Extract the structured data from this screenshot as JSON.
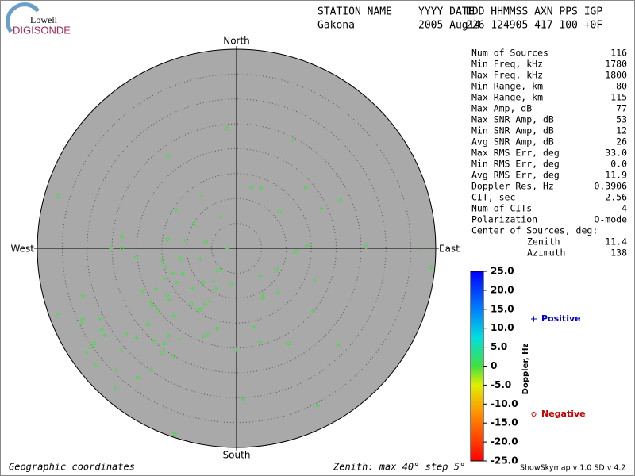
{
  "logo": {
    "line1": "Lowell",
    "line2": "DIGISONDE"
  },
  "header": {
    "labels": [
      "STATION NAME",
      "YYYY DATE",
      "DDD HHMMSS AXN PPS IGP"
    ],
    "values": [
      "Gakona",
      "2005 Aug14",
      "226 124905 417 100 +0F"
    ]
  },
  "stats": [
    [
      "Num of Sources",
      "116"
    ],
    [
      "Min Freq, kHz",
      "1780"
    ],
    [
      "Max Freq, kHz",
      "1800"
    ],
    [
      "Min Range, km",
      "80"
    ],
    [
      "Max Range, km",
      "115"
    ],
    [
      "Max Amp, dB",
      "77"
    ],
    [
      "Max SNR Amp, dB",
      "53"
    ],
    [
      "Min SNR Amp, dB",
      "12"
    ],
    [
      "Avg SNR Amp, dB",
      "26"
    ],
    [
      "Max RMS Err, deg",
      "33.0"
    ],
    [
      "Min RMS Err, deg",
      "0.0"
    ],
    [
      "Avg RMS Err, deg",
      "11.9"
    ],
    [
      "Doppler Res, Hz",
      "0.3906"
    ],
    [
      "CIT, sec",
      "2.56"
    ],
    [
      "Num of CITs",
      "4"
    ],
    [
      "Polarization",
      "O-mode"
    ],
    [
      "Center of Sources, deg:",
      ""
    ]
  ],
  "center": [
    [
      "Zenith",
      "11.4"
    ],
    [
      "Azimuth",
      "138"
    ]
  ],
  "footer": {
    "left": "Geographic coordinates",
    "center": "Zenith: max 40°  step 5°",
    "right": "ShowSkymap v 1.0   SD v 4.2"
  },
  "chart_data": {
    "type": "polar-scatter",
    "directions": {
      "north": "North",
      "south": "South",
      "west": "West",
      "east": "East"
    },
    "zenith_max": 40,
    "zenith_step": 5,
    "background": "#a9a9a9",
    "mark_color": "#40e040",
    "colorbar": {
      "title": "Doppler, Hz",
      "clim": [
        -25,
        25
      ],
      "ticks": [
        {
          "value": 25,
          "label": "25.0"
        },
        {
          "value": 20,
          "label": "20.0"
        },
        {
          "value": 15,
          "label": "15.0"
        },
        {
          "value": 10,
          "label": "10.0"
        },
        {
          "value": 5,
          "label": "5.0"
        },
        {
          "value": 0,
          "label": "0"
        },
        {
          "value": -5,
          "label": "-5.0"
        },
        {
          "value": -10,
          "label": "-10.0"
        },
        {
          "value": -15,
          "label": "-15.0"
        },
        {
          "value": -20,
          "label": "-20.0"
        },
        {
          "value": -25,
          "label": "-25.0"
        }
      ]
    },
    "series": [
      {
        "name": "Positive",
        "marker": "+",
        "color": "#0000cc",
        "x": [
          11.3,
          4.9,
          -7.0,
          17.1,
          -12.1,
          -3.2,
          -10.4,
          -25.2,
          -1.8,
          14.2,
          37.0,
          -14.2,
          -7.3,
          -3.3,
          -14.5,
          4.8,
          -4.0,
          -12.1,
          -4.6,
          15.6,
          -4.1,
          -8.8,
          -16.1,
          5.3,
          8.4,
          -13.5,
          -17.2,
          -16.9,
          -6.4,
          -5.3,
          -7.8,
          -12.6,
          -31.2,
          -27.3,
          15.3,
          -22.0,
          3.5,
          -6.7,
          -20.1,
          -16.6,
          -11.5,
          -26.5,
          -30.1,
          -23.0,
          4.8,
          20.4,
          0,
          -24.2,
          -17.2,
          1.3,
          16.3
        ],
        "y": [
          21.7,
          12.1,
          10.5,
          8.0,
          7.8,
          6.2,
          1.6,
          0,
          0,
          0.6,
          -0.5,
          -3.7,
          -2.1,
          -4.3,
          -6.2,
          -5.6,
          -4.6,
          -6.9,
          -6.7,
          -6.4,
          -8.1,
          -8.0,
          -8.1,
          -9.2,
          -8.9,
          -10.4,
          -10.8,
          -11.6,
          -11.2,
          -10.7,
          -12.1,
          -13.5,
          -15.1,
          -14.2,
          -12.6,
          -17.1,
          -15.8,
          -17.7,
          -18.0,
          -18.6,
          -18.3,
          -17.5,
          -20.9,
          -20.6,
          -18.8,
          -19.4,
          -20.4,
          -24.4,
          -24.4,
          -30.4,
          -31.7
        ]
      },
      {
        "name": "Negative",
        "marker": "o",
        "color": "#cc0000",
        "x": [
          -1.9,
          -13.7,
          -35.7,
          3.0,
          13.9,
          20.9,
          8.6,
          -8.6,
          -23.0,
          -13.9,
          -6.2,
          -23.0,
          12.0,
          26.0,
          39.0,
          -20.2,
          -14.8,
          -11.3,
          -12.7,
          -10.8,
          8.0,
          -6.7,
          -1.0,
          -19.0,
          -30.9,
          5.3,
          -13.9,
          -15.9,
          -9.1,
          -30.9,
          -36.0,
          -27.1,
          -17.8,
          -7.2,
          -3.8,
          -5.7,
          -13.7,
          -14.5,
          -28.5,
          -29.2,
          -15.0,
          10.5,
          -12.6,
          -28.2,
          -19.9,
          -24.2,
          -12.4
        ],
        "y": [
          24.1,
          18.6,
          10.5,
          12.3,
          12.3,
          9.6,
          7.3,
          4.9,
          2.4,
          1.8,
          1.4,
          0,
          -0.6,
          0.3,
          -3.8,
          -1.9,
          -2.4,
          -2.1,
          -5.1,
          -5.1,
          -4.1,
          -6.9,
          -7.2,
          -8.9,
          -9.4,
          -10.0,
          -9.4,
          -12.6,
          -11.2,
          -14.3,
          -13.5,
          -16.4,
          -15.3,
          -12.3,
          -16.1,
          -17.4,
          -17.5,
          -19.1,
          -19.1,
          -19.8,
          -21.0,
          -19.1,
          -21.7,
          -23.3,
          -26.0,
          -28.2,
          -37.3
        ]
      }
    ]
  }
}
